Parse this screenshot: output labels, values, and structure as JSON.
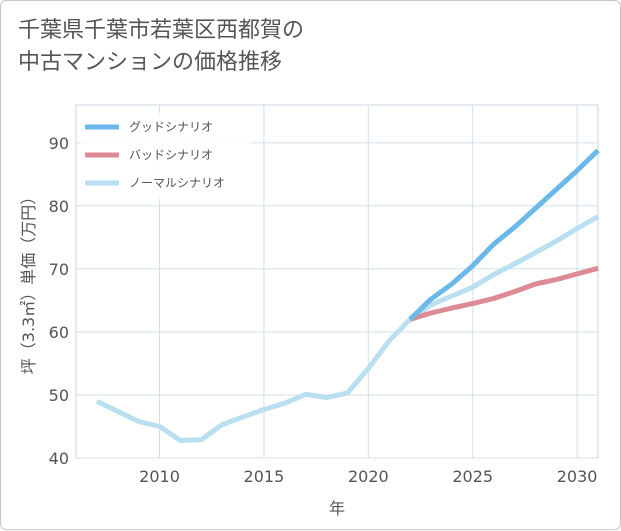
{
  "title_line1": "千葉県千葉市若葉区西都賀の",
  "title_line2": "中古マンションの価格推移",
  "chart_data": {
    "type": "line",
    "xlabel": "年",
    "ylabel": "坪（3.3㎡）単価（万円）",
    "xlim": [
      2006,
      2031
    ],
    "ylim": [
      40,
      96
    ],
    "x_ticks": [
      2010,
      2015,
      2020,
      2025,
      2030
    ],
    "y_ticks": [
      40,
      50,
      60,
      70,
      80,
      90
    ],
    "grid": true,
    "legend_position": "top-left",
    "series": [
      {
        "name": "グッドシナリオ",
        "color": "#6bb8ea",
        "points": [
          [
            2022,
            62.0
          ],
          [
            2023,
            65.2
          ],
          [
            2024,
            67.6
          ],
          [
            2025,
            70.5
          ],
          [
            2026,
            73.9
          ],
          [
            2027,
            76.6
          ],
          [
            2028,
            79.6
          ],
          [
            2029,
            82.6
          ],
          [
            2030,
            85.6
          ],
          [
            2031,
            88.8
          ]
        ]
      },
      {
        "name": "バッドシナリオ",
        "color": "#de8a94",
        "points": [
          [
            2022,
            62.0
          ],
          [
            2023,
            63.0
          ],
          [
            2024,
            63.8
          ],
          [
            2025,
            64.5
          ],
          [
            2026,
            65.3
          ],
          [
            2027,
            66.4
          ],
          [
            2028,
            67.6
          ],
          [
            2029,
            68.3
          ],
          [
            2030,
            69.2
          ],
          [
            2031,
            70.1
          ]
        ]
      },
      {
        "name": "ノーマルシナリオ",
        "color": "#b9dff0",
        "points": [
          [
            2007,
            49.0
          ],
          [
            2008,
            47.4
          ],
          [
            2009,
            45.8
          ],
          [
            2010,
            45.0
          ],
          [
            2011,
            42.8
          ],
          [
            2012,
            42.9
          ],
          [
            2013,
            45.3
          ],
          [
            2014,
            46.5
          ],
          [
            2015,
            47.7
          ],
          [
            2016,
            48.7
          ],
          [
            2017,
            50.1
          ],
          [
            2018,
            49.6
          ],
          [
            2019,
            50.3
          ],
          [
            2020,
            54.2
          ],
          [
            2021,
            58.6
          ],
          [
            2022,
            62.0
          ],
          [
            2023,
            64.3
          ],
          [
            2024,
            65.7
          ],
          [
            2025,
            67.1
          ],
          [
            2026,
            69.1
          ],
          [
            2027,
            70.8
          ],
          [
            2028,
            72.6
          ],
          [
            2029,
            74.4
          ],
          [
            2030,
            76.4
          ],
          [
            2031,
            78.3
          ]
        ]
      }
    ]
  }
}
